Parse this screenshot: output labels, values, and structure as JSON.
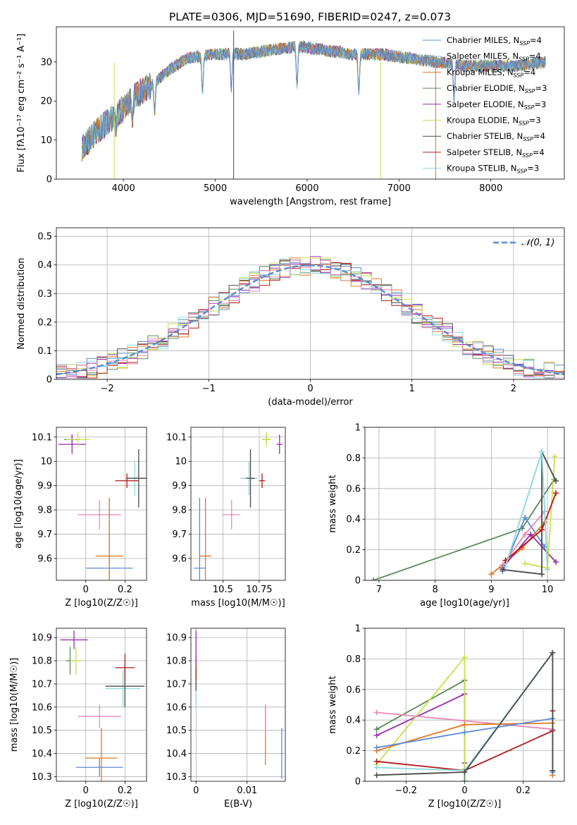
{
  "figure_title": "PLATE=0306, MJD=51690, FIBERID=0247, z=0.073",
  "colors": {
    "Chabrier MILES": "#5b8bd6",
    "Salpeter MILES": "#7ecbd6",
    "Kroupa MILES": "#e07b20",
    "Chabrier ELODIE": "#5a8a5a",
    "Salpeter ELODIE": "#9a2ab0",
    "Kroupa ELODIE": "#c8e04a",
    "Chabrier STELIB": "#4a4a4a",
    "Salpeter STELIB": "#b01818",
    "Kroupa STELIB": "#8ad8de",
    "pink": "#e888b8"
  },
  "chart_data": [
    {
      "id": "spectrum",
      "type": "line",
      "title": "PLATE=0306, MJD=51690, FIBERID=0247, z=0.073",
      "xlabel": "wavelength [Angstrom, rest frame]",
      "ylabel": "Flux [fλ10⁻¹⁷ erg cm⁻² s⁻¹ A⁻¹]",
      "xlim": [
        3270,
        8800
      ],
      "ylim": [
        0,
        39
      ],
      "xticks": [
        4000,
        5000,
        6000,
        7000,
        8000
      ],
      "yticks": [
        0,
        10,
        20,
        30
      ],
      "legend_position": "upper-right",
      "series": [
        {
          "name": "Chabrier MILES, N_SSP=4",
          "color": "#5b8bd6"
        },
        {
          "name": "Salpeter MILES, N_SSP=4",
          "color": "#7ecbd6"
        },
        {
          "name": "Kroupa MILES, N_SSP=4",
          "color": "#e07b20"
        },
        {
          "name": "Chabrier ELODIE, N_SSP=3",
          "color": "#5a8a5a"
        },
        {
          "name": "Salpeter ELODIE, N_SSP=3",
          "color": "#9a2ab0"
        },
        {
          "name": "Kroupa ELODIE, N_SSP=3",
          "color": "#c8e04a"
        },
        {
          "name": "Chabrier STELIB, N_SSP=4",
          "color": "#4a4a4a"
        },
        {
          "name": "Salpeter STELIB, N_SSP=4",
          "color": "#b01818"
        },
        {
          "name": "Kroupa STELIB, N_SSP=3",
          "color": "#8ad8de"
        }
      ],
      "continuum": {
        "x": [
          3550,
          3700,
          3850,
          4000,
          4100,
          4300,
          4500,
          4700,
          5000,
          5300,
          5600,
          5900,
          6200,
          6500,
          6800,
          7100,
          7400,
          7700,
          8000,
          8300,
          8600
        ],
        "y": [
          8,
          12,
          15,
          18,
          21,
          24,
          28,
          31,
          32,
          32,
          33,
          34,
          33,
          32,
          32,
          31,
          30,
          29,
          29,
          29,
          30
        ]
      }
    },
    {
      "id": "residuals",
      "type": "bar",
      "xlabel": "(data-model)/error",
      "ylabel": "Normed distribution",
      "xlim": [
        -2.5,
        2.5
      ],
      "ylim": [
        0,
        0.53
      ],
      "xticks": [
        -2,
        -1,
        0,
        1,
        2
      ],
      "yticks": [
        0.0,
        0.1,
        0.2,
        0.3,
        0.4,
        0.5
      ],
      "legend": "N(0,1)",
      "legend_position": "upper-right",
      "grid": true,
      "bin_width": 0.1
    },
    {
      "id": "age-vs-Z",
      "type": "scatter",
      "xlabel": "Z [log10(Z/Z☉)]",
      "ylabel": "age  [log10(age/yr)]",
      "xlim": [
        -0.15,
        0.31
      ],
      "ylim": [
        9.51,
        10.14
      ],
      "xticks": [
        0.0,
        0.2
      ],
      "yticks": [
        9.6,
        9.7,
        9.8,
        9.9,
        10.0,
        10.1
      ],
      "grid": true,
      "points": [
        {
          "x": 0.12,
          "y": 9.56,
          "xerr": 0.12,
          "yerr": 0.29,
          "color": "#5b8bd6"
        },
        {
          "x": 0.12,
          "y": 9.61,
          "xerr": 0.07,
          "yerr": 0.24,
          "color": "#e07b20"
        },
        {
          "x": 0.07,
          "y": 9.78,
          "xerr": 0.11,
          "yerr": 0.06,
          "color": "#e888b8"
        },
        {
          "x": 0.25,
          "y": 9.93,
          "xerr": 0.05,
          "yerr": 0.07,
          "color": "#8ad8de"
        },
        {
          "x": 0.27,
          "y": 9.93,
          "xerr": 0.06,
          "yerr": 0.12,
          "color": "#4a4a4a"
        },
        {
          "x": 0.21,
          "y": 9.92,
          "xerr": 0.06,
          "yerr": 0.03,
          "color": "#b01818"
        },
        {
          "x": -0.07,
          "y": 10.09,
          "xerr": 0.04,
          "yerr": 0.02,
          "color": "#5a8a5a"
        },
        {
          "x": -0.07,
          "y": 10.07,
          "xerr": 0.07,
          "yerr": 0.04,
          "color": "#9a2ab0"
        },
        {
          "x": -0.04,
          "y": 10.09,
          "xerr": 0.06,
          "yerr": 0.03,
          "color": "#c8e04a"
        }
      ]
    },
    {
      "id": "age-vs-mass",
      "type": "scatter",
      "xlabel": "mass [log10(M/M☉)]",
      "ylabel": "",
      "xlim": [
        10.28,
        10.93
      ],
      "ylim": [
        9.51,
        10.14
      ],
      "xticks": [
        10.5,
        10.75
      ],
      "yticks": [
        9.6,
        9.7,
        9.8,
        9.9,
        10.0,
        10.1
      ],
      "grid": true,
      "points": [
        {
          "x": 10.34,
          "y": 9.56,
          "xerr": 0.04,
          "yerr": 0.29,
          "color": "#5b8bd6"
        },
        {
          "x": 10.38,
          "y": 9.61,
          "xerr": 0.04,
          "yerr": 0.24,
          "color": "#e07b20"
        },
        {
          "x": 10.56,
          "y": 9.78,
          "xerr": 0.06,
          "yerr": 0.06,
          "color": "#e888b8"
        },
        {
          "x": 10.68,
          "y": 9.93,
          "xerr": 0.06,
          "yerr": 0.07,
          "color": "#8ad8de"
        },
        {
          "x": 10.69,
          "y": 9.93,
          "xerr": 0.03,
          "yerr": 0.12,
          "color": "#4a4a4a"
        },
        {
          "x": 10.77,
          "y": 9.92,
          "xerr": 0.02,
          "yerr": 0.03,
          "color": "#b01818"
        },
        {
          "x": 10.8,
          "y": 10.09,
          "xerr": 0.03,
          "yerr": 0.02,
          "color": "#5a8a5a"
        },
        {
          "x": 10.89,
          "y": 10.07,
          "xerr": 0.02,
          "yerr": 0.04,
          "color": "#9a2ab0"
        },
        {
          "x": 10.8,
          "y": 10.09,
          "xerr": 0.03,
          "yerr": 0.03,
          "color": "#c8e04a"
        }
      ]
    },
    {
      "id": "massweight-vs-age",
      "type": "line",
      "xlabel": "age  [log10(age/yr)]",
      "ylabel": "mass weight",
      "xlim": [
        6.75,
        10.3
      ],
      "ylim": [
        0,
        1.0
      ],
      "xticks": [
        7,
        8,
        9,
        10
      ],
      "yticks": [
        0.0,
        0.2,
        0.4,
        0.6,
        0.8,
        1.0
      ],
      "grid": true,
      "series": [
        {
          "color": "#5a8a5a",
          "x": [
            6.9,
            9.55,
            10.12
          ],
          "y": [
            0.0,
            0.34,
            0.66
          ]
        },
        {
          "color": "#5b8bd6",
          "x": [
            9.2,
            9.6,
            9.95
          ],
          "y": [
            0.06,
            0.41,
            0.22
          ]
        },
        {
          "color": "#e07b20",
          "x": [
            9.0,
            9.55,
            9.95
          ],
          "y": [
            0.04,
            0.21,
            0.38
          ]
        },
        {
          "color": "#e888b8",
          "x": [
            9.2,
            9.6,
            9.95
          ],
          "y": [
            0.1,
            0.3,
            0.45
          ]
        },
        {
          "color": "#9a2ab0",
          "x": [
            9.2,
            9.7,
            10.15
          ],
          "y": [
            0.08,
            0.3,
            0.12
          ]
        },
        {
          "color": "#c8e04a",
          "x": [
            9.6,
            10.0,
            10.13
          ],
          "y": [
            0.11,
            0.08,
            0.81
          ]
        },
        {
          "color": "#4a4a4a",
          "x": [
            9.2,
            9.9,
            9.9,
            10.15
          ],
          "y": [
            0.07,
            0.04,
            0.84,
            0.65
          ]
        },
        {
          "color": "#b01818",
          "x": [
            9.25,
            9.9,
            10.15
          ],
          "y": [
            0.13,
            0.33,
            0.57
          ]
        },
        {
          "color": "#8ad8de",
          "x": [
            9.25,
            9.9,
            10.0
          ],
          "y": [
            0.09,
            0.84,
            0.07
          ]
        }
      ]
    },
    {
      "id": "mass-vs-Z",
      "type": "scatter",
      "xlabel": "Z [log10(Z/Z☉)]",
      "ylabel": "mass [log10(M/M☉)]",
      "xlim": [
        -0.15,
        0.31
      ],
      "ylim": [
        10.28,
        10.94
      ],
      "xticks": [
        0.0,
        0.2
      ],
      "yticks": [
        10.3,
        10.4,
        10.5,
        10.6,
        10.7,
        10.8,
        10.9
      ],
      "grid": true,
      "points": [
        {
          "x": 0.07,
          "y": 10.34,
          "xerr": 0.12,
          "yerr": 0.04,
          "color": "#5b8bd6"
        },
        {
          "x": 0.08,
          "y": 10.38,
          "xerr": 0.08,
          "yerr": 0.13,
          "color": "#e07b20"
        },
        {
          "x": 0.07,
          "y": 10.56,
          "xerr": 0.11,
          "yerr": 0.05,
          "color": "#e888b8"
        },
        {
          "x": 0.19,
          "y": 10.68,
          "xerr": 0.09,
          "yerr": 0.08,
          "color": "#8ad8de"
        },
        {
          "x": 0.2,
          "y": 10.69,
          "xerr": 0.1,
          "yerr": 0.09,
          "color": "#4a4a4a"
        },
        {
          "x": 0.2,
          "y": 10.77,
          "xerr": 0.05,
          "yerr": 0.06,
          "color": "#b01818"
        },
        {
          "x": -0.08,
          "y": 10.8,
          "xerr": 0.02,
          "yerr": 0.06,
          "color": "#5a8a5a"
        },
        {
          "x": -0.06,
          "y": 10.89,
          "xerr": 0.07,
          "yerr": 0.04,
          "color": "#9a2ab0"
        },
        {
          "x": -0.05,
          "y": 10.8,
          "xerr": 0.03,
          "yerr": 0.06,
          "color": "#c8e04a"
        }
      ]
    },
    {
      "id": "mass-vs-EBV",
      "type": "scatter",
      "xlabel": "E(B-V)",
      "ylabel": "",
      "xlim": [
        -0.001,
        0.0175
      ],
      "ylim": [
        10.28,
        10.94
      ],
      "xticks": [
        0.0,
        0.01
      ],
      "yticks": [
        10.3,
        10.4,
        10.5,
        10.6,
        10.7,
        10.8,
        10.9
      ],
      "grid": true,
      "points": [
        {
          "x": 0.0168,
          "y": 10.4,
          "yerr": 0.11,
          "color": "#5b8bd6"
        },
        {
          "x": 0.0136,
          "y": 10.48,
          "yerr": 0.13,
          "color": "#e07b20"
        },
        {
          "x": 0.0136,
          "y": 10.55,
          "yerr": 0.06,
          "color": "#e888b8"
        },
        {
          "x": 0.0,
          "y": 10.68,
          "yerr": 0.08,
          "color": "#8ad8de"
        },
        {
          "x": 0.0,
          "y": 10.72,
          "yerr": 0.05,
          "color": "#4a4a4a"
        },
        {
          "x": 0.0,
          "y": 10.77,
          "yerr": 0.05,
          "color": "#b01818"
        },
        {
          "x": 0.0,
          "y": 10.86,
          "yerr": 0.07,
          "color": "#9a2ab0"
        }
      ]
    },
    {
      "id": "massweight-vs-Z",
      "type": "line",
      "xlabel": "Z [log10(Z/Z☉)]",
      "ylabel": "mass weight",
      "xlim": [
        -0.34,
        0.34
      ],
      "ylim": [
        0,
        1.0
      ],
      "xticks": [
        -0.2,
        0.0,
        0.2
      ],
      "yticks": [
        0.0,
        0.2,
        0.4,
        0.6,
        0.8,
        1.0
      ],
      "grid": true,
      "series": [
        {
          "color": "#5a8a5a",
          "x": [
            -0.3,
            0.0,
            0.0
          ],
          "y": [
            0.34,
            0.66,
            0.0
          ]
        },
        {
          "color": "#9a2ab0",
          "x": [
            -0.3,
            0.0,
            0.0
          ],
          "y": [
            0.3,
            0.57,
            0.12
          ]
        },
        {
          "color": "#c8e04a",
          "x": [
            -0.3,
            0.0,
            0.0
          ],
          "y": [
            0.11,
            0.81,
            0.08
          ]
        },
        {
          "color": "#e888b8",
          "x": [
            -0.3,
            0.3
          ],
          "y": [
            0.45,
            0.34
          ]
        },
        {
          "color": "#e07b20",
          "x": [
            -0.3,
            0.0,
            0.3,
            0.3
          ],
          "y": [
            0.2,
            0.37,
            0.38,
            0.04
          ]
        },
        {
          "color": "#5b8bd6",
          "x": [
            -0.3,
            0.0,
            0.3,
            0.3
          ],
          "y": [
            0.22,
            0.32,
            0.41,
            0.06
          ]
        },
        {
          "color": "#b01818",
          "x": [
            -0.3,
            0.0,
            0.3,
            0.3
          ],
          "y": [
            0.13,
            0.07,
            0.33,
            0.46
          ]
        },
        {
          "color": "#8ad8de",
          "x": [
            -0.3,
            0.0,
            0.3
          ],
          "y": [
            0.09,
            0.07,
            0.84
          ]
        },
        {
          "color": "#4a4a4a",
          "x": [
            -0.3,
            0.0,
            0.3,
            0.3
          ],
          "y": [
            0.04,
            0.06,
            0.84,
            0.07
          ]
        }
      ]
    }
  ]
}
